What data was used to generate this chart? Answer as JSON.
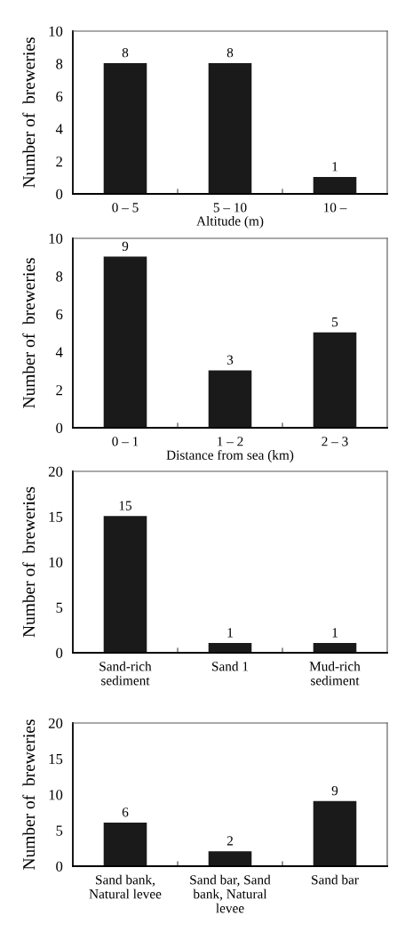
{
  "chart_data": [
    {
      "type": "bar",
      "categories": [
        "0 – 5",
        "5 – 10",
        "10 –"
      ],
      "values": [
        8,
        8,
        1
      ],
      "color": "#1a1a1a",
      "xlabel": "Altitude (m)",
      "ylabel": "Number of  breweries",
      "ylim": [
        0,
        10
      ],
      "yticks": [
        0,
        2,
        4,
        6,
        8,
        10
      ],
      "data_labels": true,
      "grid": false,
      "legend": false
    },
    {
      "type": "bar",
      "categories": [
        "0 – 1",
        "1 – 2",
        "2 – 3"
      ],
      "values": [
        9,
        3,
        5
      ],
      "color": "#1a1a1a",
      "xlabel": "Distance from sea (km)",
      "ylabel": "Number of  breweries",
      "ylim": [
        0,
        10
      ],
      "yticks": [
        0,
        2,
        4,
        6,
        8,
        10
      ],
      "data_labels": true,
      "grid": false,
      "legend": false
    },
    {
      "type": "bar",
      "categories": [
        "Sand-rich\nsediment",
        "Sand 1",
        "Mud-rich\nsediment"
      ],
      "values": [
        15,
        1,
        1
      ],
      "color": "#1a1a1a",
      "ylabel": "Number of  breweries",
      "ylim": [
        0,
        20
      ],
      "yticks": [
        0,
        5,
        10,
        15,
        20
      ],
      "data_labels": true,
      "grid": false,
      "legend": false
    },
    {
      "type": "bar",
      "categories": [
        "Sand bank,\nNatural levee",
        "Sand bar, Sand\nbank, Natural\nlevee",
        "Sand bar"
      ],
      "values": [
        6,
        2,
        9
      ],
      "color": "#1a1a1a",
      "ylabel": "Number of  breweries",
      "ylim": [
        0,
        20
      ],
      "yticks": [
        0,
        5,
        10,
        15,
        20
      ],
      "data_labels": true,
      "grid": false,
      "legend": false
    }
  ]
}
